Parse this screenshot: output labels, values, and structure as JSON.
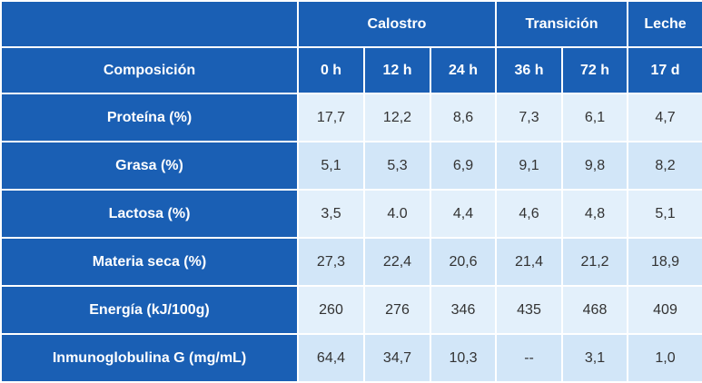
{
  "table": {
    "group_headers": {
      "calostro": "Calostro",
      "transicion": "Transición",
      "leche": "Leche"
    },
    "composition_header": "Composición",
    "time_headers": [
      "0 h",
      "12 h",
      "24 h",
      "36 h",
      "72 h",
      "17 d"
    ],
    "rows": [
      {
        "label": "Proteína (%)",
        "values": [
          "17,7",
          "12,2",
          "8,6",
          "7,3",
          "6,1",
          "4,7"
        ]
      },
      {
        "label": "Grasa (%)",
        "values": [
          "5,1",
          "5,3",
          "6,9",
          "9,1",
          "9,8",
          "8,2"
        ]
      },
      {
        "label": "Lactosa (%)",
        "values": [
          "3,5",
          "4.0",
          "4,4",
          "4,6",
          "4,8",
          "5,1"
        ]
      },
      {
        "label": "Materia seca (%)",
        "values": [
          "27,3",
          "22,4",
          "20,6",
          "21,4",
          "21,2",
          "18,9"
        ]
      },
      {
        "label": "Energía (kJ/100g)",
        "values": [
          "260",
          "276",
          "346",
          "435",
          "468",
          "409"
        ]
      },
      {
        "label": "Inmunoglobulina G (mg/mL)",
        "values": [
          "64,4",
          "34,7",
          "10,3",
          "--",
          "3,1",
          "1,0"
        ]
      }
    ],
    "colors": {
      "header_bg": "#1a5fb4",
      "header_text": "#ffffff",
      "cell_bg_light": "#e3f0fb",
      "cell_bg_dark": "#d2e6f8",
      "cell_text": "#333333"
    }
  }
}
